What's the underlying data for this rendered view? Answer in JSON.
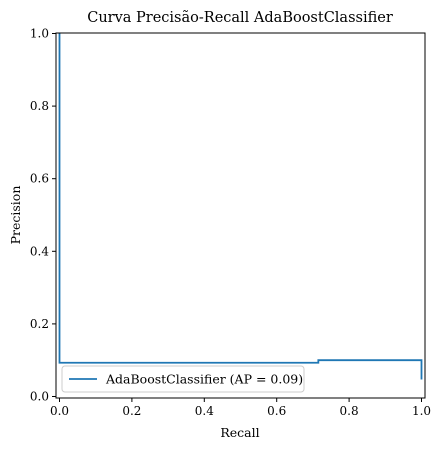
{
  "chart_data": {
    "type": "line",
    "title": "Curva Precisão-Recall AdaBoostClassifier",
    "xlabel": "Recall",
    "ylabel": "Precision",
    "xlim": [
      0.0,
      1.0
    ],
    "ylim": [
      0.0,
      1.0
    ],
    "xticks": [
      "0.0",
      "0.2",
      "0.4",
      "0.6",
      "0.8",
      "1.0"
    ],
    "yticks": [
      "0.0",
      "0.2",
      "0.4",
      "0.6",
      "0.8",
      "1.0"
    ],
    "grid": false,
    "legend_position": "lower-left",
    "series": [
      {
        "name": "AdaBoostClassifier (AP = 0.09)",
        "color": "#1f77b4",
        "drawstyle": "steps-post",
        "x": [
          0.0,
          0.0,
          0.715,
          0.715,
          1.0,
          1.0
        ],
        "y": [
          1.0,
          0.093,
          0.093,
          0.1,
          0.1,
          0.047
        ]
      }
    ]
  }
}
